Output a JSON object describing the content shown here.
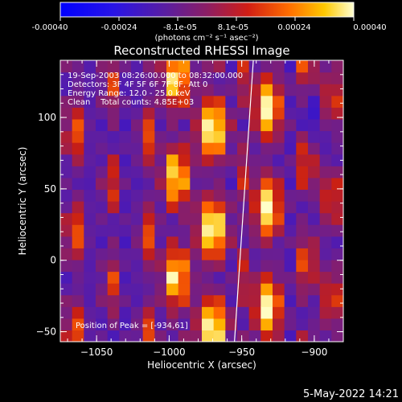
{
  "colorbar": {
    "ticks": [
      "-0.00040",
      "-0.00024",
      "-8.1e-05",
      "8.1e-05",
      "0.00024",
      "0.00040"
    ],
    "unit_label": "(photons cm⁻² s⁻¹ asec⁻²)",
    "range": [
      -0.0004,
      0.0004
    ],
    "colors": [
      "#0000ff",
      "#5a1ea0",
      "#8c1e64",
      "#c81e14",
      "#ff6400",
      "#ffc800",
      "#ffffc8"
    ]
  },
  "chart_data": {
    "type": "heatmap",
    "title": "Reconstructed RHESSI Image",
    "xlabel": "Heliocentric X (arcsec)",
    "ylabel": "Heliocentric Y (arcsec)",
    "xlim": [
      -1075,
      -880
    ],
    "ylim": [
      -57,
      140
    ],
    "xticks": [
      -1050,
      -1000,
      -950,
      -900
    ],
    "yticks": [
      -50,
      0,
      50,
      100
    ],
    "xtick_labels": [
      "−1050",
      "−1000",
      "−950",
      "−900"
    ],
    "ytick_labels": [
      "−50",
      "0",
      "50",
      "100"
    ],
    "grid_cols": 24,
    "grid_rows": 24,
    "peak": [
      -934,
      61
    ],
    "limb_line": [
      [
        -955,
        -57
      ],
      [
        -942,
        140
      ]
    ]
  },
  "info": {
    "line1": "19-Sep-2003 08:26:00.000 to 08:32:00.000",
    "line2": "Detectors: 3F 4F 5F 6F 7F 8F, Att 0",
    "line3": "Energy Range: 12.0 - 25.0 keV",
    "line4": "Clean    Total counts: 4.85E+03",
    "peak_text": "Position of Peak = [-934,61]"
  },
  "footer": {
    "date": "5-May-2022 14:21"
  }
}
